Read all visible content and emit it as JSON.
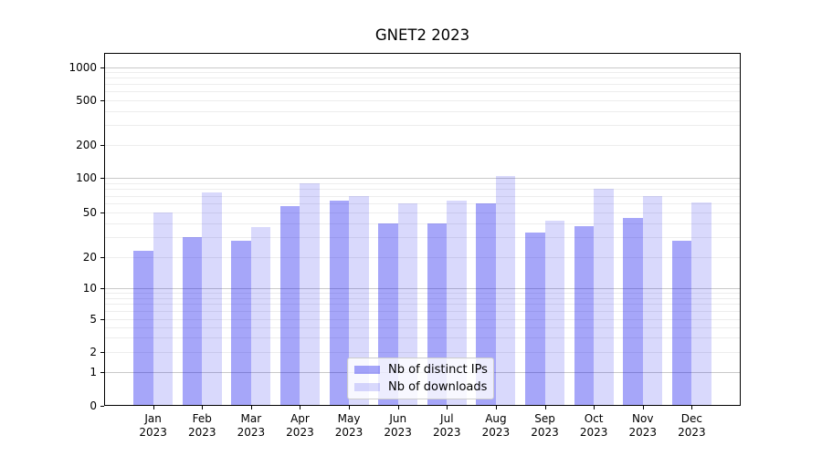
{
  "chart_data": {
    "type": "bar",
    "title": "GNET2 2023",
    "categories": [
      "Jan",
      "Feb",
      "Mar",
      "Apr",
      "May",
      "Jun",
      "Jul",
      "Aug",
      "Sep",
      "Oct",
      "Nov",
      "Dec"
    ],
    "category_year": "2023",
    "series": [
      {
        "name": "Nb of distinct IPs",
        "color": "rgba(0,0,238,0.35)",
        "values": [
          23,
          30,
          28,
          57,
          64,
          40,
          40,
          60,
          33,
          38,
          45,
          28
        ]
      },
      {
        "name": "Nb of downloads",
        "color": "rgba(0,0,238,0.15)",
        "values": [
          50,
          75,
          37,
          90,
          70,
          60,
          63,
          104,
          42,
          80,
          70,
          61
        ]
      }
    ],
    "yscale": "symlog",
    "yticks": [
      0,
      1,
      2,
      5,
      10,
      20,
      50,
      100,
      200,
      500,
      1000
    ],
    "ylim": [
      0,
      1340
    ],
    "grid": "both",
    "legend_position": "lower-center",
    "legend_entries": [
      "Nb of distinct IPs",
      "Nb of downloads"
    ]
  },
  "colors": {
    "bar_distinct_ips": "rgba(0,0,238,0.35)",
    "bar_downloads": "rgba(0,0,238,0.15)",
    "grid_major": "#c9c9c9",
    "grid_minor": "#ededed",
    "axis": "#000000",
    "legend_border": "#cccccc",
    "legend_bg": "rgba(255,255,255,0.8)"
  }
}
